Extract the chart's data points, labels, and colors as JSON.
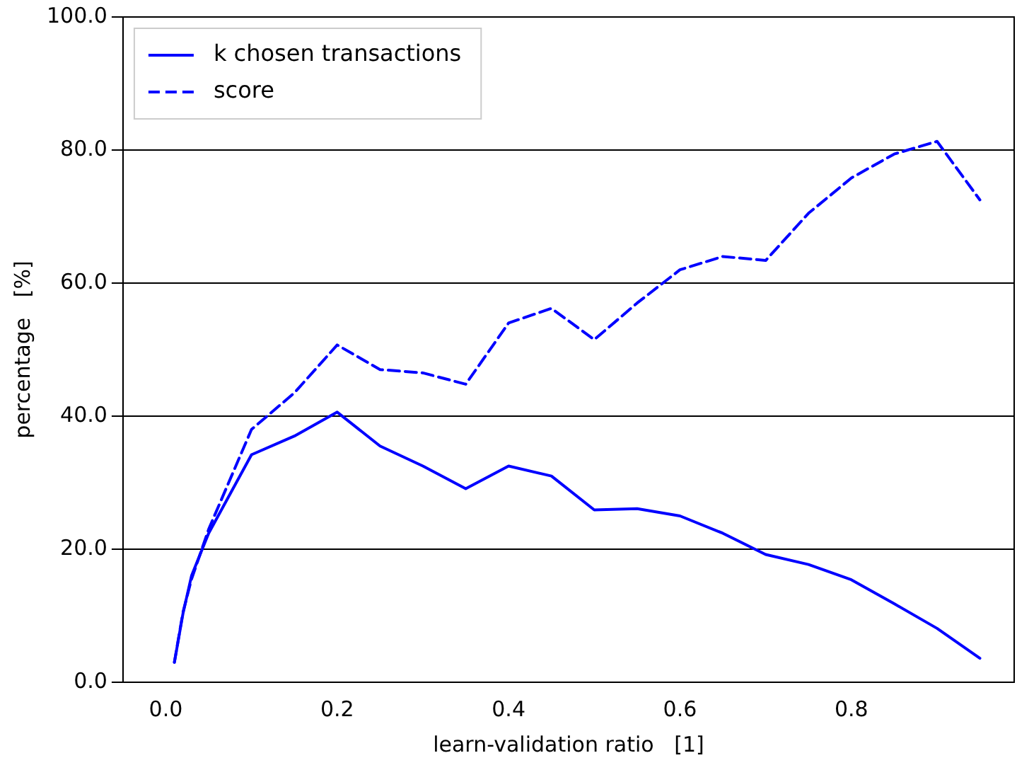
{
  "chart_data": {
    "type": "line",
    "xlabel": "learn-validation ratio   [1]",
    "ylabel": "percentage   [%]",
    "x": [
      0.01,
      0.02,
      0.03,
      0.05,
      0.1,
      0.15,
      0.2,
      0.25,
      0.3,
      0.35,
      0.4,
      0.45,
      0.5,
      0.55,
      0.6,
      0.65,
      0.7,
      0.75,
      0.8,
      0.85,
      0.9,
      0.95
    ],
    "series": [
      {
        "name": "k chosen transactions",
        "color": "#0000ff",
        "line_style": "solid",
        "values": [
          3.0,
          10.3,
          16,
          22.4,
          34.2,
          37,
          40.6,
          35.5,
          32.5,
          29.1,
          32.5,
          31,
          25.9,
          26.1,
          25,
          22.4,
          19.2,
          17.7,
          15.4,
          11.8,
          8.1,
          3.6
        ]
      },
      {
        "name": "score",
        "color": "#0000ff",
        "line_style": "dashed",
        "values": [
          3.0,
          10.5,
          15.5,
          23,
          38,
          43.5,
          50.7,
          47,
          46.5,
          44.8,
          54,
          56.2,
          51.5,
          57,
          62,
          64,
          63.4,
          70.5,
          75.8,
          79.4,
          81.3,
          72.5
        ]
      }
    ],
    "xlim": [
      -0.05,
      0.99
    ],
    "xticks": [
      {
        "value": 0,
        "label": "0.0"
      },
      0.2,
      0.4,
      0.6,
      0.8
    ],
    "ylim": [
      0,
      100
    ],
    "yticks": [
      {
        "value": 0,
        "label": "0.0"
      },
      {
        "value": 20,
        "label": "20.0"
      },
      {
        "value": 40,
        "label": "40.0"
      },
      {
        "value": 60,
        "label": "60.0"
      },
      {
        "value": 80,
        "label": "80.0"
      },
      {
        "value": 100,
        "label": "100.0"
      }
    ],
    "grid": "y",
    "legend": "top left",
    "marker": "none"
  }
}
